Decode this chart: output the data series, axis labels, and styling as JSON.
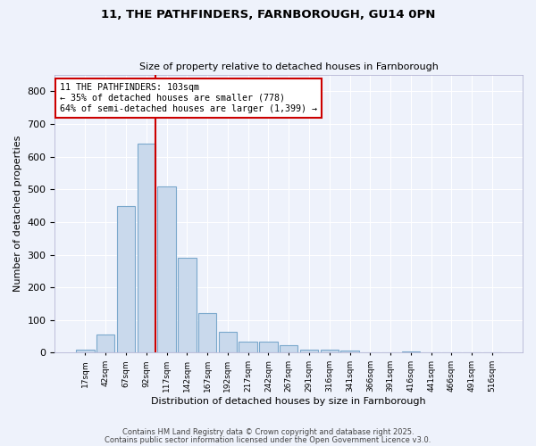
{
  "title1": "11, THE PATHFINDERS, FARNBOROUGH, GU14 0PN",
  "title2": "Size of property relative to detached houses in Farnborough",
  "xlabel": "Distribution of detached houses by size in Farnborough",
  "ylabel": "Number of detached properties",
  "bar_labels": [
    "17sqm",
    "42sqm",
    "67sqm",
    "92sqm",
    "117sqm",
    "142sqm",
    "167sqm",
    "192sqm",
    "217sqm",
    "242sqm",
    "267sqm",
    "291sqm",
    "316sqm",
    "341sqm",
    "366sqm",
    "391sqm",
    "416sqm",
    "441sqm",
    "466sqm",
    "491sqm",
    "516sqm"
  ],
  "bar_values": [
    10,
    57,
    450,
    640,
    510,
    290,
    120,
    65,
    35,
    35,
    22,
    10,
    8,
    7,
    0,
    0,
    5,
    0,
    0,
    0,
    0
  ],
  "bar_color": "#c9d9ec",
  "bar_edge_color": "#7aa8cc",
  "annotation_line1": "11 THE PATHFINDERS: 103sqm",
  "annotation_line2": "← 35% of detached houses are smaller (778)",
  "annotation_line3": "64% of semi-detached houses are larger (1,399) →",
  "ylim": [
    0,
    850
  ],
  "yticks": [
    0,
    100,
    200,
    300,
    400,
    500,
    600,
    700,
    800
  ],
  "footer1": "Contains HM Land Registry data © Crown copyright and database right 2025.",
  "footer2": "Contains public sector information licensed under the Open Government Licence v3.0.",
  "bg_color": "#eef2fb",
  "plot_bg_color": "#eef2fb"
}
